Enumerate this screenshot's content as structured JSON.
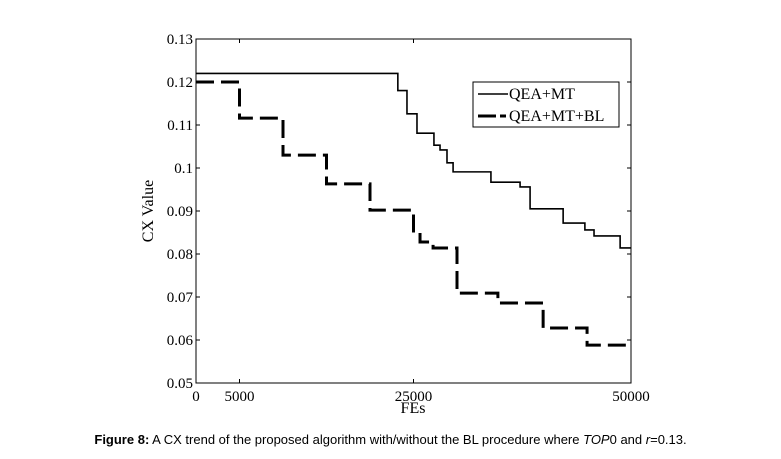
{
  "chart_data": {
    "type": "line",
    "title": "",
    "xlabel": "FEs",
    "ylabel": "CX Value",
    "xlim": [
      0,
      50000
    ],
    "ylim": [
      0.05,
      0.13
    ],
    "xticks": [
      0,
      5000,
      25000,
      50000
    ],
    "xtick_labels": [
      "0",
      "5000",
      "25000",
      "50000"
    ],
    "yticks": [
      0.05,
      0.06,
      0.07,
      0.08,
      0.09,
      0.1,
      0.11,
      0.12,
      0.13
    ],
    "ytick_labels": [
      "0.05",
      "0.06",
      "0.07",
      "0.08",
      "0.09",
      "0.1",
      "0.11",
      "0.12",
      "0.13"
    ],
    "grid": false,
    "legend_position": "top-right",
    "series": [
      {
        "name": "QEA+MT",
        "style": "solid",
        "step": true,
        "x": [
          0,
          23200,
          24250,
          25400,
          27350,
          28050,
          28850,
          29550,
          33900,
          37250,
          38400,
          42200,
          44700,
          45750,
          48750,
          50000
        ],
        "y": [
          0.122,
          0.118,
          0.1126,
          0.1081,
          0.1053,
          0.1042,
          0.1012,
          0.0991,
          0.0967,
          0.0956,
          0.0905,
          0.0872,
          0.0856,
          0.0842,
          0.0814,
          0.0814
        ]
      },
      {
        "name": "QEA+MT+BL",
        "style": "dashed",
        "step": true,
        "x": [
          0,
          5000,
          10000,
          15000,
          20000,
          25000,
          25750,
          27250,
          30000,
          34700,
          39900,
          44950,
          50000
        ],
        "y": [
          0.12,
          0.1116,
          0.103,
          0.0963,
          0.0902,
          0.0849,
          0.0828,
          0.0814,
          0.0709,
          0.0686,
          0.0628,
          0.0588,
          0.0588
        ]
      }
    ],
    "color": "#000000"
  },
  "caption": {
    "label": "Figure 8:",
    "text_1": " A CX trend of the proposed algorithm with/without  the BL procedure where ",
    "italic_1": "TOP",
    "text_2": "0 and ",
    "italic_2": "r",
    "text_3": "=0.13."
  }
}
